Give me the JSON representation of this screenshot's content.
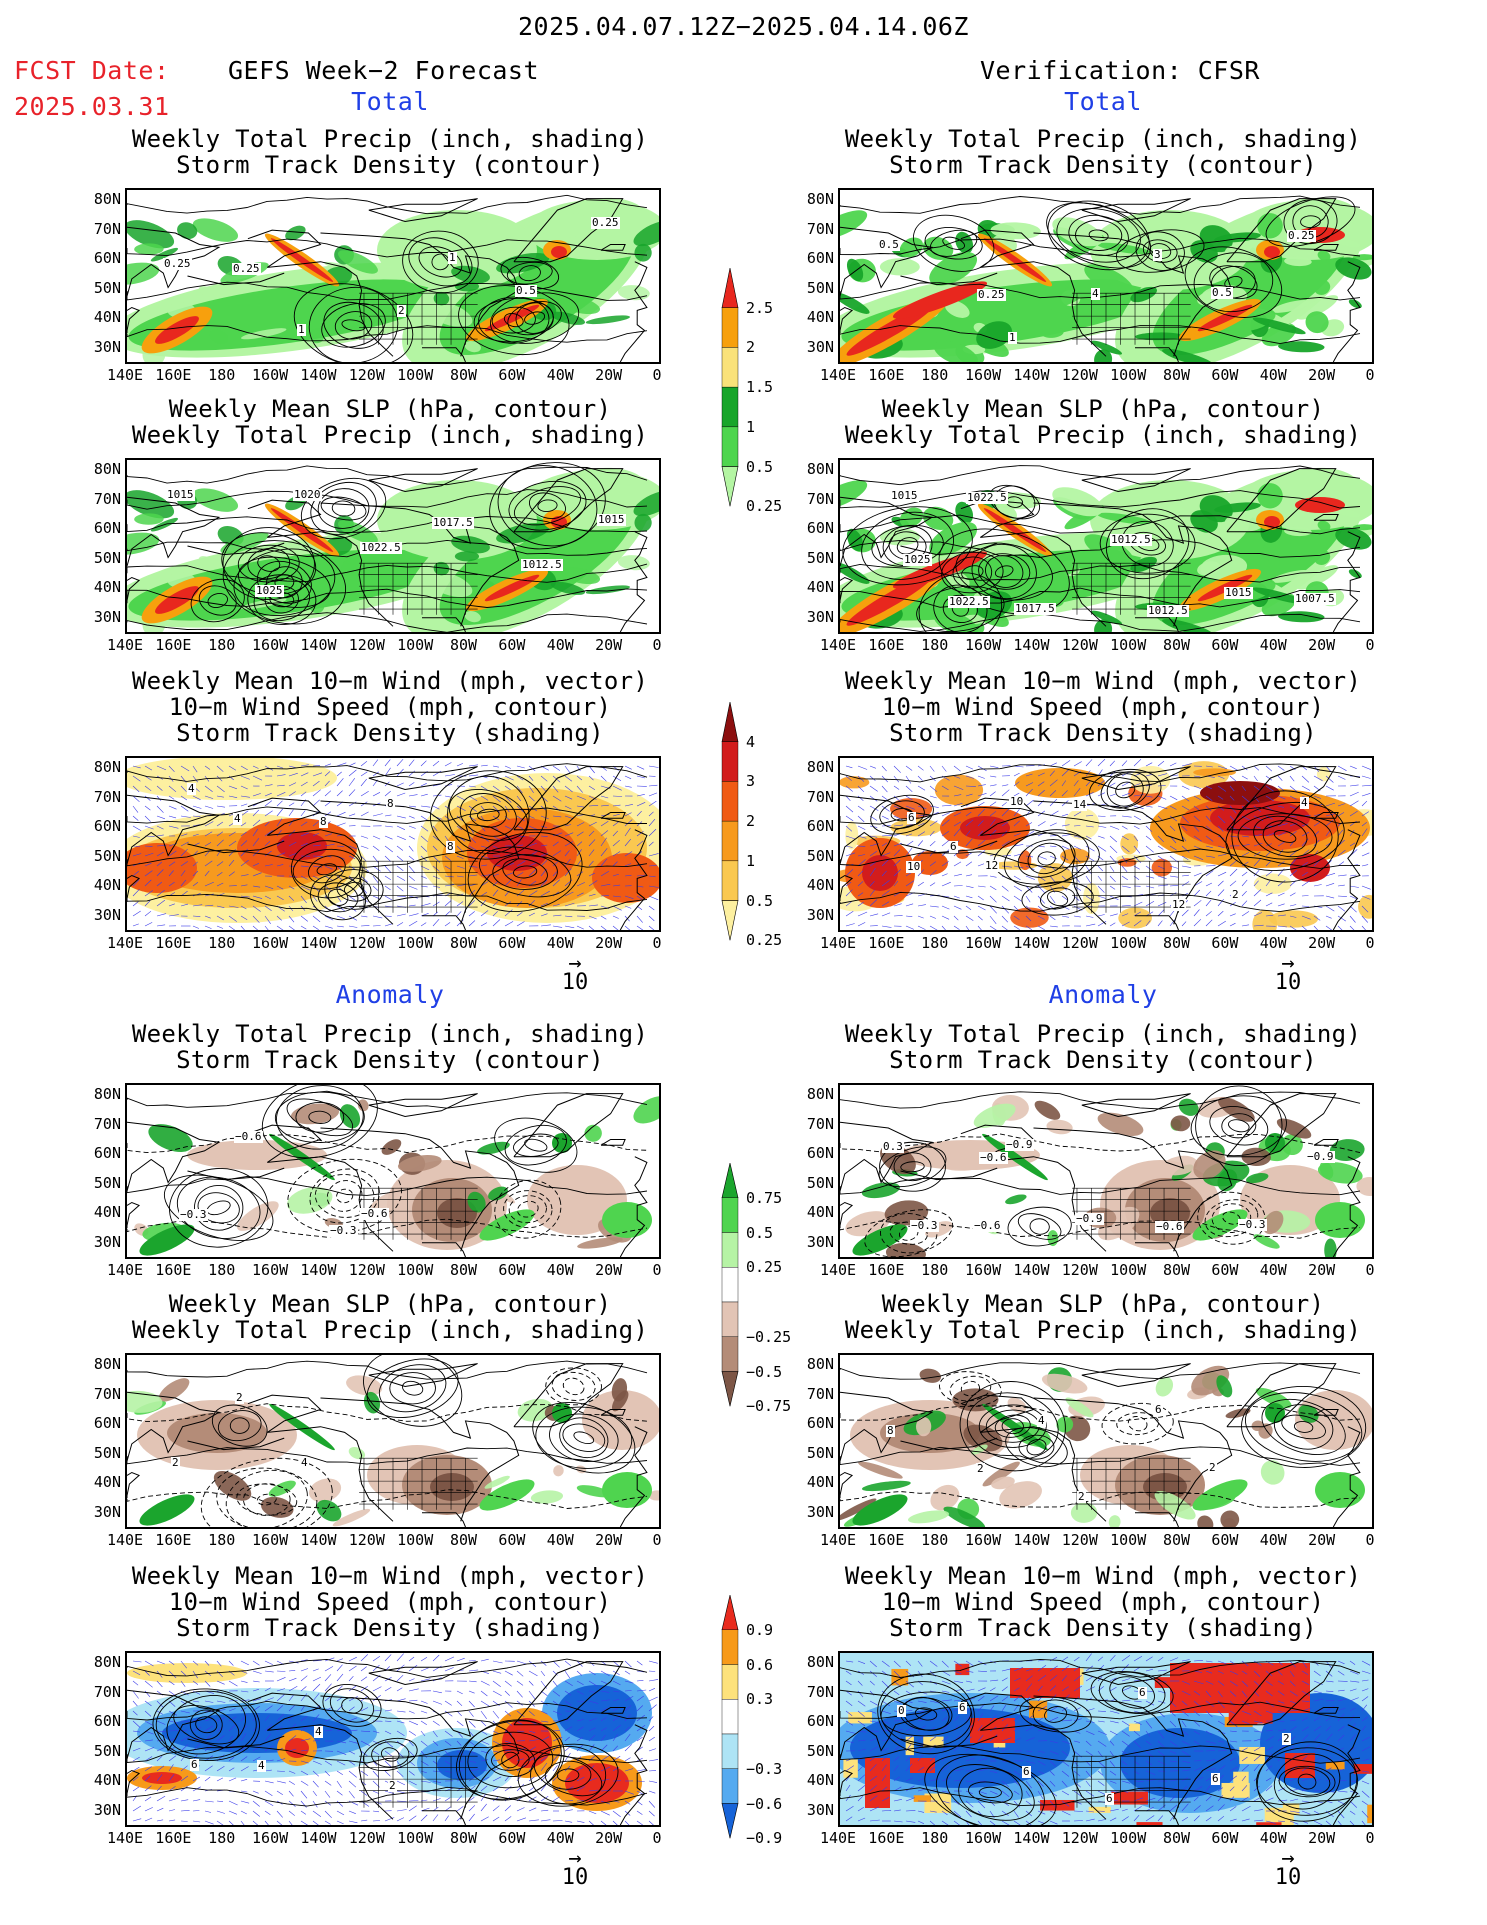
{
  "header": {
    "period": "2025.04.07.12Z−2025.04.14.06Z",
    "fcst_label": "FCST Date:",
    "fcst_date": "2025.03.31",
    "left_title": "GEFS Week−2 Forecast",
    "right_title": "Verification: CFSR"
  },
  "sections": {
    "total": "Total",
    "anomaly": "Anomaly"
  },
  "panel_titles": {
    "precip_storm": [
      "Weekly Total Precip (inch, shading)",
      "Storm Track Density (contour)"
    ],
    "slp_precip": [
      "Weekly Mean SLP (hPa, contour)",
      "Weekly Total Precip (inch, shading)"
    ],
    "wind_storm": [
      "Weekly Mean 10−m Wind (mph, vector)",
      "10−m Wind Speed (mph, contour)",
      "Storm Track Density (shading)"
    ]
  },
  "axes": {
    "lat_ticks": [
      "80N",
      "70N",
      "60N",
      "50N",
      "40N",
      "30N"
    ],
    "lon_ticks": [
      "140E",
      "160E",
      "180",
      "160W",
      "140W",
      "120W",
      "100W",
      "80W",
      "60W",
      "40W",
      "20W",
      "0"
    ]
  },
  "vector_ref": "10",
  "colorbars": {
    "precip_total": {
      "labels": [
        "2.5",
        "2",
        "1.5",
        "1",
        "0.5",
        "0.25"
      ],
      "colors": [
        "#e8271e",
        "#f7a00d",
        "#fae27a",
        "#18a52a",
        "#4ed54e",
        "#b4f5a3"
      ]
    },
    "storm_total": {
      "labels": [
        "4",
        "3",
        "2",
        "1",
        "0.5",
        "0.25"
      ],
      "colors": [
        "#8c0f0f",
        "#d21c1c",
        "#f05a14",
        "#f79a1e",
        "#fac850",
        "#fdf0a0"
      ]
    },
    "precip_anom": {
      "labels": [
        "0.75",
        "0.5",
        "0.25",
        "−0.25",
        "−0.5",
        "−0.75"
      ],
      "colors": [
        "#1ba52d",
        "#4fd44f",
        "#b6f3a5",
        "#ffffff",
        "#e2c4b5",
        "#b48c78",
        "#7d5646"
      ]
    },
    "storm_anom": {
      "labels": [
        "0.9",
        "0.6",
        "0.3",
        "−0.3",
        "−0.6",
        "−0.9"
      ],
      "colors": [
        "#e82b1e",
        "#f79a1a",
        "#fde27c",
        "#ffffff",
        "#aee4f5",
        "#55aaf0",
        "#1663d8"
      ]
    }
  },
  "contour_labels": {
    "p1": [
      "0.25",
      "0.25",
      "1",
      "2",
      "1",
      "0.5",
      "0.25"
    ],
    "p2": [
      "0.5",
      "0.25",
      "1",
      "4",
      "3",
      "0.5",
      "0.25"
    ],
    "p3": [
      "1015",
      "1025",
      "1020",
      "1022.5",
      "1017.5",
      "1012.5",
      "1015"
    ],
    "p4": [
      "1025",
      "1022.5",
      "1017.5",
      "1012.5",
      "1012.5",
      "1015",
      "1007.5",
      "1015",
      "1022.5"
    ],
    "p5": [
      "4",
      "4",
      "8",
      "8",
      "8"
    ],
    "p6": [
      "6",
      "6",
      "10",
      "14",
      "12",
      "2",
      "4",
      "10",
      "12"
    ],
    "p7": [
      "−0.3",
      "−0.6",
      "−0.3",
      "−0.6"
    ],
    "p8": [
      "−0.3",
      "−0.6",
      "−0.9",
      "−0.9",
      "−0.6",
      "−0.3",
      "−0.9",
      "0.3",
      "−0.6"
    ],
    "p9": [
      "2",
      "2",
      "4"
    ],
    "p10": [
      "8",
      "2",
      "4",
      "2",
      "6",
      "2"
    ],
    "p11": [
      "6",
      "4",
      "4",
      "2"
    ],
    "p12": [
      "0",
      "6",
      "6",
      "6",
      "6",
      "6",
      "2"
    ]
  }
}
